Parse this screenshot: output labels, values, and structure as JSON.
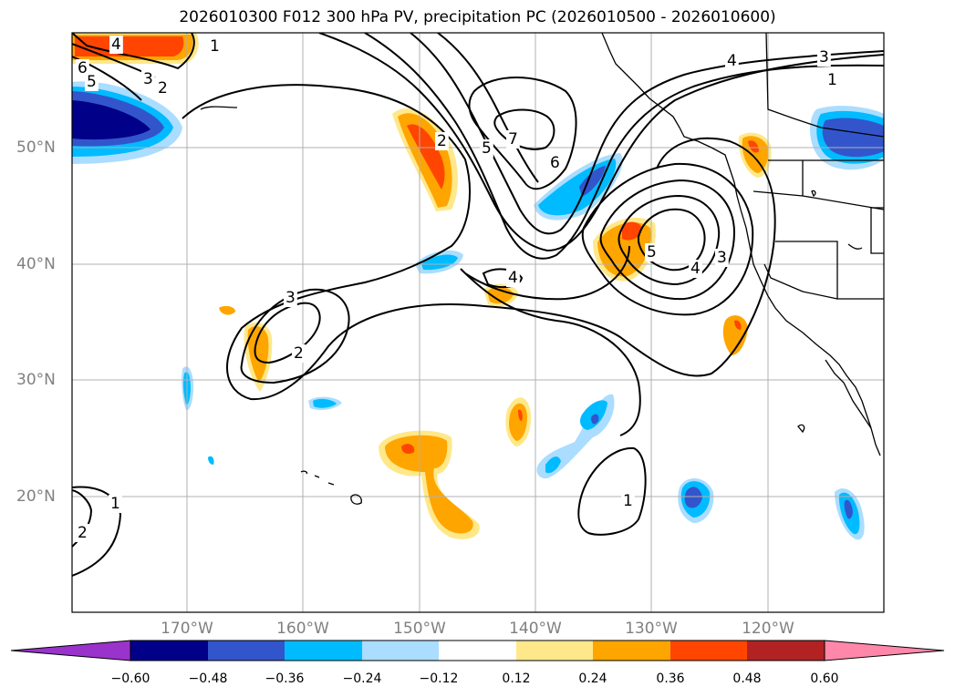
{
  "title": "2026010300 F012 300 hPa PV, precipitation PC (2026010500 - 2026010600)",
  "lat_labels": [
    "50°N",
    "40°N",
    "30°N",
    "20°N"
  ],
  "lon_labels": [
    "170°W",
    "160°W",
    "150°W",
    "140°W",
    "130°W",
    "120°W"
  ],
  "contour_labels": [
    "1",
    "2",
    "3",
    "4",
    "5",
    "6",
    "7"
  ],
  "colorbar": {
    "ticks": [
      "−0.60",
      "−0.48",
      "−0.36",
      "−0.24",
      "−0.12",
      "0.12",
      "0.24",
      "0.36",
      "0.48",
      "0.60"
    ],
    "colors": [
      "#9933cc",
      "#000088",
      "#3355cc",
      "#00bbff",
      "#aaddff",
      "#ffffff",
      "#ffe88a",
      "#ffa500",
      "#ff4500",
      "#b22222",
      "#ff88aa"
    ]
  }
}
